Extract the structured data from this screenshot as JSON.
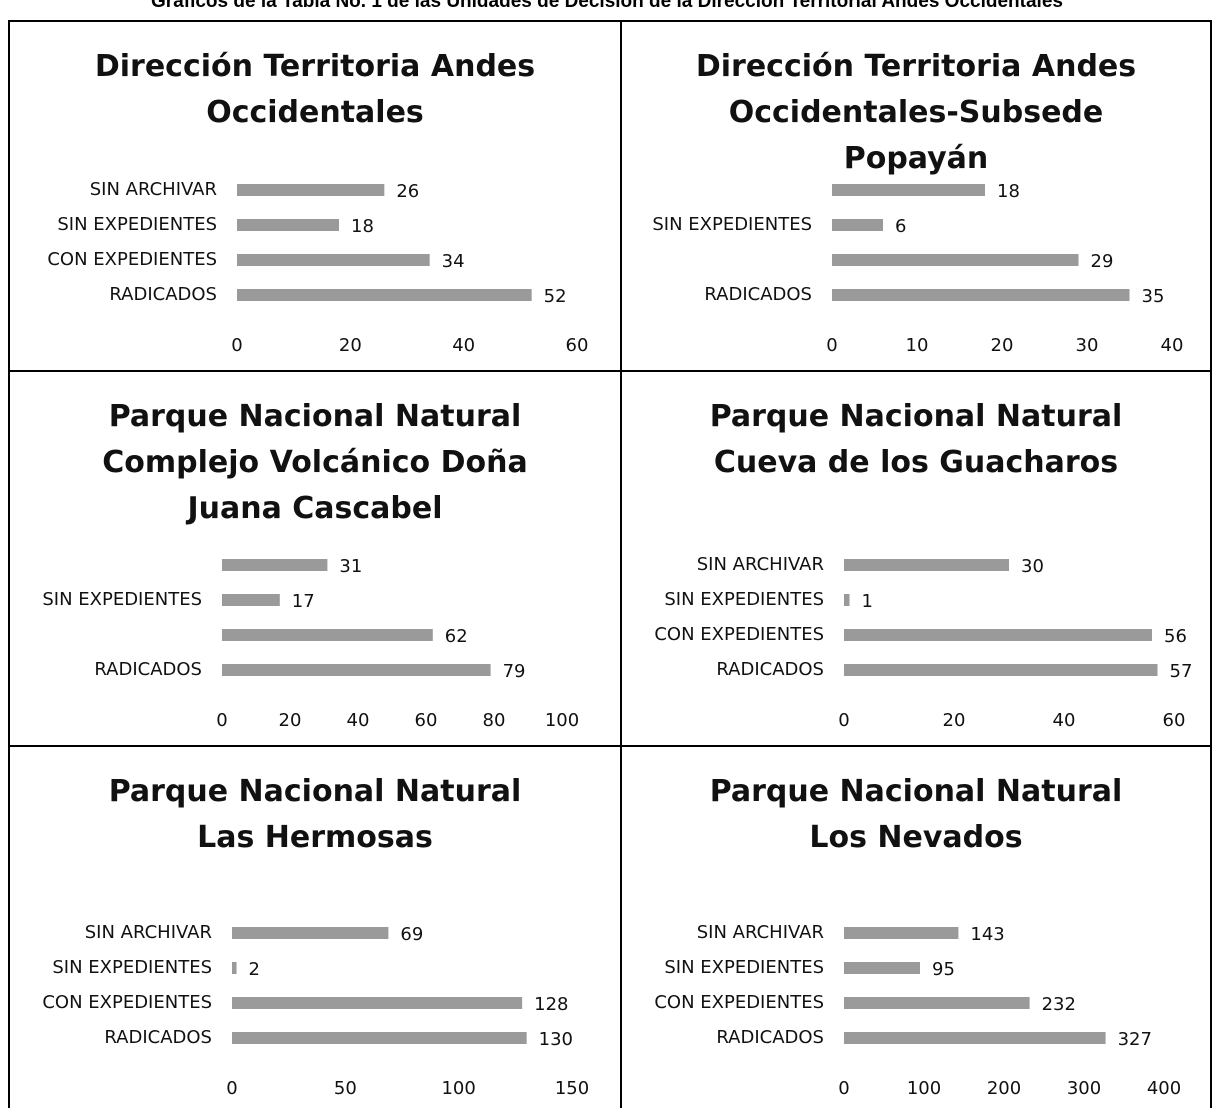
{
  "header": {
    "title": "Gráficos de la Tabla No. 1 de las Unidades de Decisión de la Dirección Territorial Andes Occidentales"
  },
  "chart_data": [
    {
      "type": "barh",
      "title": "Dirección Territoria Andes Occidentales",
      "categories": [
        "SIN ARCHIVAR",
        "SIN EXPEDIENTES",
        "CON EXPEDIENTES",
        "RADICADOS"
      ],
      "values": [
        26,
        18,
        34,
        52
      ],
      "color": "#9a9a9a",
      "xlim": [
        0,
        60
      ],
      "xticks": [
        0,
        20,
        40,
        60
      ]
    },
    {
      "type": "barh",
      "title": "Dirección Territoria Andes Occidentales-Subsede Popayán",
      "categories": [
        null,
        "SIN EXPEDIENTES",
        null,
        "RADICADOS"
      ],
      "values": [
        18,
        6,
        29,
        35
      ],
      "color": "#9a9a9a",
      "xlim": [
        0,
        40
      ],
      "xticks": [
        0,
        10,
        20,
        30,
        40
      ]
    },
    {
      "type": "barh",
      "title": "Parque Nacional Natural Complejo Volcánico Doña Juana Cascabel",
      "categories": [
        null,
        "SIN EXPEDIENTES",
        null,
        "RADICADOS"
      ],
      "values": [
        31,
        17,
        62,
        79
      ],
      "color": "#9a9a9a",
      "xlim": [
        0,
        100
      ],
      "xticks": [
        0,
        20,
        40,
        60,
        80,
        100
      ]
    },
    {
      "type": "barh",
      "title": "Parque Nacional Natural Cueva de los Guacharos",
      "categories": [
        "SIN ARCHIVAR",
        "SIN EXPEDIENTES",
        "CON EXPEDIENTES",
        "RADICADOS"
      ],
      "values": [
        30,
        1,
        56,
        57
      ],
      "color": "#9a9a9a",
      "xlim": [
        0,
        60
      ],
      "xticks": [
        0,
        20,
        40,
        60
      ]
    },
    {
      "type": "barh",
      "title": "Parque Nacional Natural Las Hermosas",
      "categories": [
        "SIN ARCHIVAR",
        "SIN EXPEDIENTES",
        "CON EXPEDIENTES",
        "RADICADOS"
      ],
      "values": [
        69,
        2,
        128,
        130
      ],
      "color": "#9a9a9a",
      "xlim": [
        0,
        150
      ],
      "xticks": [
        0,
        50,
        100,
        150
      ]
    },
    {
      "type": "barh",
      "title": "Parque Nacional Natural Los Nevados",
      "categories": [
        "SIN ARCHIVAR",
        "SIN EXPEDIENTES",
        "CON EXPEDIENTES",
        "RADICADOS"
      ],
      "values": [
        143,
        95,
        232,
        327
      ],
      "color": "#9a9a9a",
      "xlim": [
        0,
        400
      ],
      "xticks": [
        0,
        100,
        200,
        300,
        400
      ]
    }
  ]
}
